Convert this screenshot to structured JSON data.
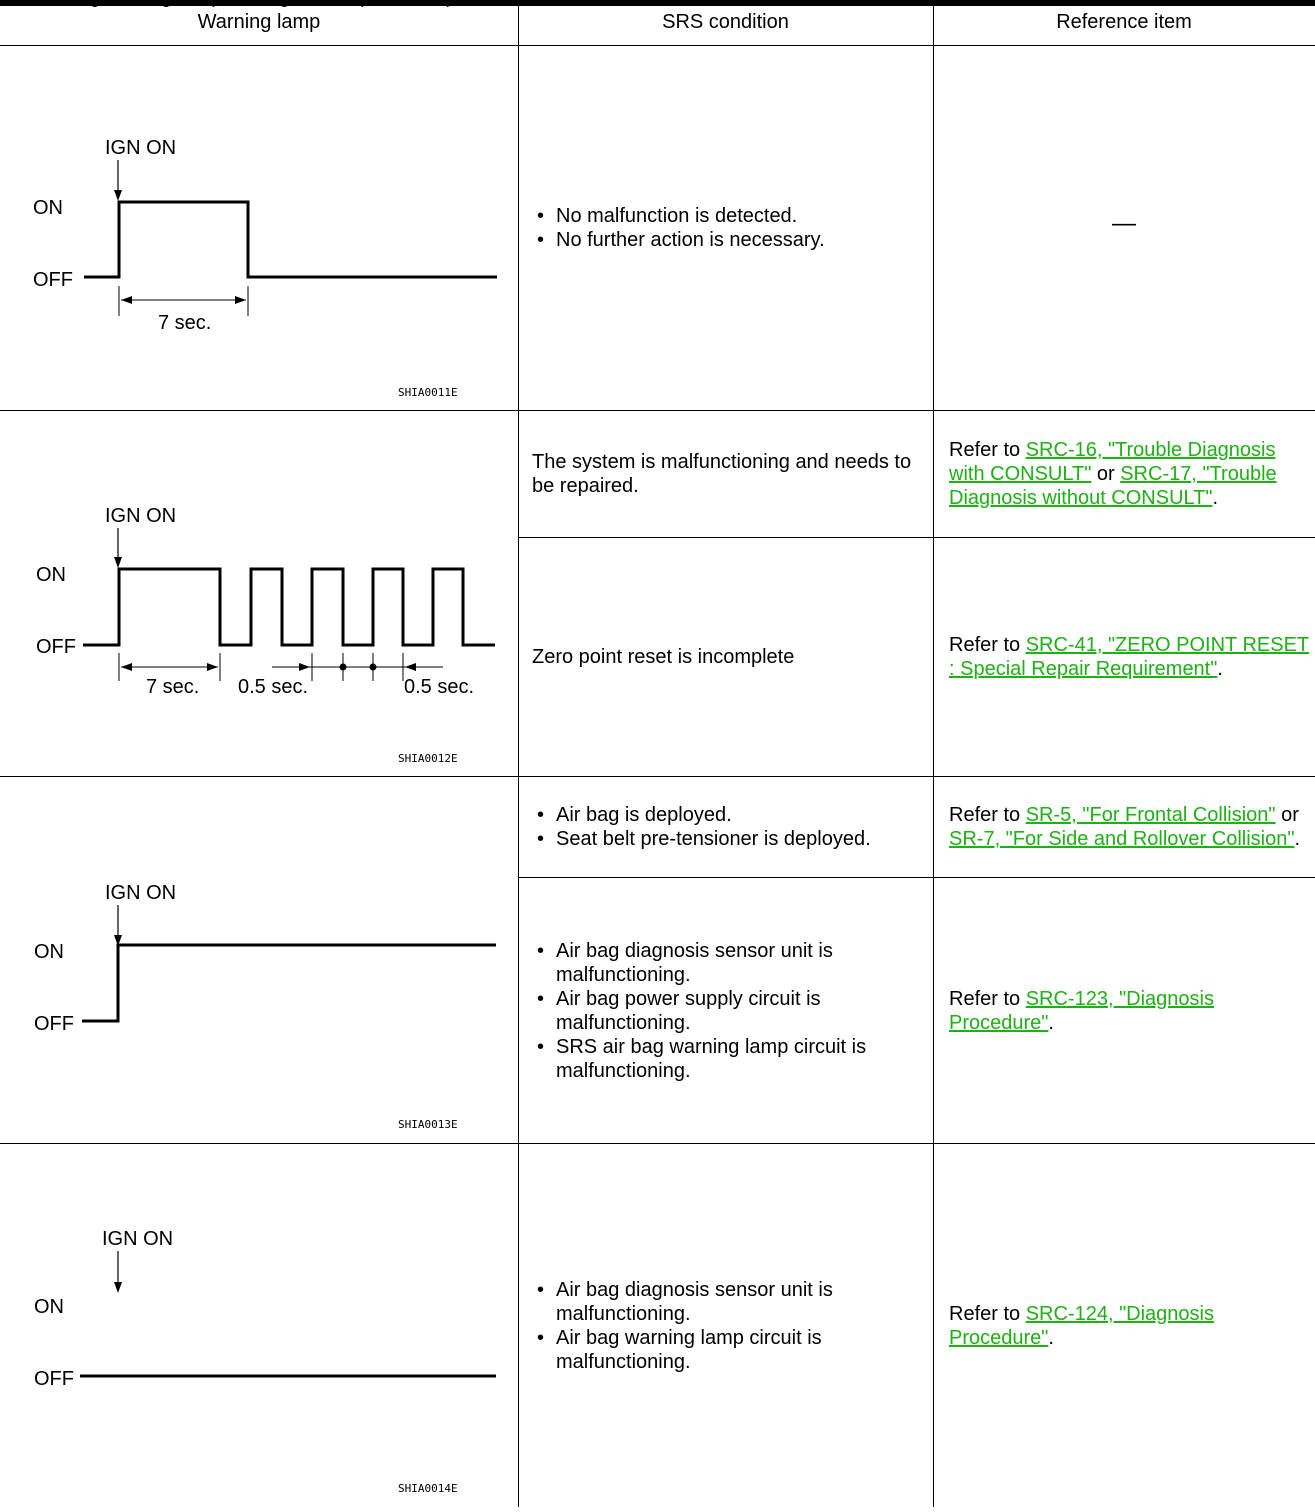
{
  "caption": "SRS Air Bag Warning Lamp Blinking Pattern (Reference)",
  "headers": {
    "lamp": "Warning lamp",
    "condition": "SRS condition",
    "reference": "Reference item"
  },
  "diagrams": {
    "d1": {
      "ign": "IGN ON",
      "on": "ON",
      "off": "OFF",
      "t1": "7 sec.",
      "code": "SHIA0011E"
    },
    "d2": {
      "ign": "IGN ON",
      "on": "ON",
      "off": "OFF",
      "t1": "7 sec.",
      "t2": "0.5 sec.",
      "t3": "0.5 sec.",
      "code": "SHIA0012E"
    },
    "d3": {
      "ign": "IGN ON",
      "on": "ON",
      "off": "OFF",
      "code": "SHIA0013E"
    },
    "d4": {
      "ign": "IGN ON",
      "on": "ON",
      "off": "OFF",
      "code": "SHIA0014E"
    }
  },
  "rows": {
    "r1": {
      "conditions": [
        "No malfunction is detected.",
        "No further action is necessary."
      ],
      "reference": "—"
    },
    "r2a": {
      "condition": "The system is malfunctioning and needs to be repaired.",
      "ref": {
        "prefix": "Refer to ",
        "link1": "SRC-16, \"Trouble Diagnosis with CONSULT\"",
        "mid": " or ",
        "link2": "SRC-17, \"Trouble Diagnosis without CONSULT\"",
        "suffix": "."
      }
    },
    "r2b": {
      "condition": "Zero point reset is incomplete",
      "ref": {
        "prefix": "Refer to ",
        "link1": "SRC-41, \"ZERO POINT RESET : Special Repair Requirement\"",
        "suffix": "."
      }
    },
    "r3a": {
      "conditions": [
        "Air bag is deployed.",
        "Seat belt pre-tensioner is deployed."
      ],
      "ref": {
        "prefix": "Refer to ",
        "link1": "SR-5, \"For Frontal Collision\"",
        "mid": " or ",
        "link2": "SR-7, \"For Side and Rollover Collision\"",
        "suffix": "."
      }
    },
    "r3b": {
      "conditions": [
        "Air bag diagnosis sensor unit is malfunctioning.",
        "Air bag power supply circuit is malfunctioning.",
        "SRS air bag warning lamp circuit is malfunctioning."
      ],
      "ref": {
        "prefix": "Refer to ",
        "link1": "SRC-123, \"Diagnosis Procedure\"",
        "suffix": "."
      }
    },
    "r4": {
      "conditions": [
        "Air bag diagnosis sensor unit is malfunctioning.",
        "Air bag warning lamp circuit is malfunctioning."
      ],
      "ref": {
        "prefix": "Refer to ",
        "link1": "SRC-124, \"Diagnosis Procedure\"",
        "suffix": "."
      }
    }
  }
}
